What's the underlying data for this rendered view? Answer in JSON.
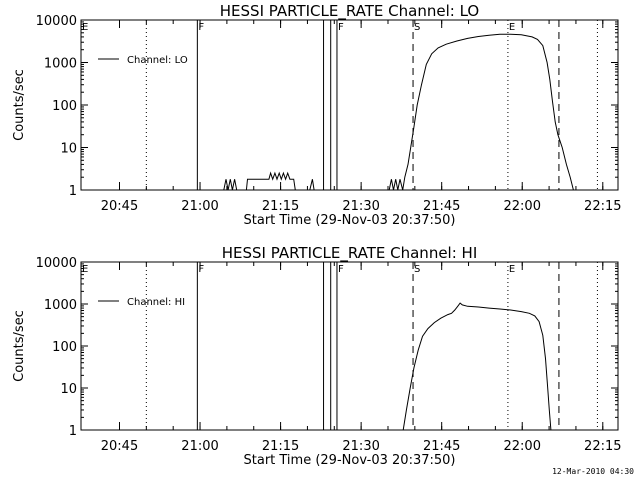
{
  "footer_timestamp": "12-Mar-2010 04:30",
  "chart_data": [
    {
      "type": "line",
      "title": "HESSI PARTICLE_RATE Channel: LO",
      "xlabel": "Start Time (29-Nov-03 20:37:50)",
      "ylabel": "Counts/sec",
      "x_unit": "minutes since 20:37:50",
      "xlim": [
        0,
        100
      ],
      "ylim": [
        1,
        10000
      ],
      "yscale": "log",
      "x_ticks": [
        "20:45",
        "21:00",
        "21:15",
        "21:30",
        "21:45",
        "22:00",
        "22:15"
      ],
      "y_ticks": [
        "1",
        "10",
        "100",
        "1000",
        "10000"
      ],
      "legend": {
        "position": "top-left",
        "entries": [
          "Channel: LO"
        ]
      },
      "markers": [
        {
          "label": "E",
          "time": "20:37:50",
          "style": "dotted"
        },
        {
          "label": "",
          "time": "20:50:00",
          "style": "dotted"
        },
        {
          "label": "F",
          "time": "20:59:30",
          "style": "solid"
        },
        {
          "label": "",
          "time": "21:23:00",
          "style": "solid"
        },
        {
          "label": "",
          "time": "21:24:20",
          "style": "solid"
        },
        {
          "label": "F",
          "time": "21:25:30",
          "style": "solid"
        },
        {
          "label": "S",
          "time": "21:39:40",
          "style": "dashed"
        },
        {
          "label": "E",
          "time": "21:57:20",
          "style": "dotted"
        },
        {
          "label": "",
          "time": "22:06:50",
          "style": "dashed"
        },
        {
          "label": "",
          "time": "22:14:00",
          "style": "dotted"
        }
      ],
      "series": [
        {
          "name": "Channel: LO",
          "segments": [
            [
              [
                26.6,
                1
              ],
              [
                27.0,
                1.8
              ],
              [
                27.4,
                1
              ],
              [
                27.8,
                1.8
              ],
              [
                28.2,
                1
              ],
              [
                28.6,
                1.8
              ],
              [
                29.0,
                1
              ]
            ],
            [
              [
                30.8,
                1
              ],
              [
                31.0,
                1.8
              ],
              [
                32.5,
                1.8
              ],
              [
                34.0,
                1.8
              ],
              [
                35.0,
                1.8
              ],
              [
                35.3,
                2.5
              ],
              [
                35.7,
                1.8
              ],
              [
                36.1,
                2.5
              ],
              [
                36.5,
                1.8
              ],
              [
                36.9,
                2.5
              ],
              [
                37.3,
                1.8
              ],
              [
                37.7,
                2.5
              ],
              [
                38.1,
                1.8
              ],
              [
                38.5,
                2.5
              ],
              [
                38.9,
                1.8
              ],
              [
                39.6,
                1.8
              ],
              [
                39.9,
                1
              ]
            ],
            [
              [
                42.6,
                1
              ],
              [
                43.1,
                1.8
              ],
              [
                43.4,
                1
              ]
            ],
            [
              [
                57.4,
                1
              ],
              [
                57.8,
                1.8
              ],
              [
                58.2,
                1
              ],
              [
                58.6,
                1.8
              ],
              [
                59.0,
                1
              ],
              [
                59.4,
                1.8
              ],
              [
                59.9,
                1
              ],
              [
                60.3,
                2
              ],
              [
                60.9,
                4
              ],
              [
                61.4,
                10
              ],
              [
                62.0,
                30
              ],
              [
                62.6,
                100
              ],
              [
                63.4,
                300
              ],
              [
                64.3,
                900
              ],
              [
                65.3,
                1600
              ],
              [
                66.5,
                2200
              ],
              [
                68.0,
                2700
              ],
              [
                70.0,
                3200
              ],
              [
                72.0,
                3700
              ],
              [
                74.0,
                4100
              ],
              [
                76.0,
                4400
              ],
              [
                78.0,
                4600
              ],
              [
                80.0,
                4600
              ],
              [
                82.0,
                4500
              ],
              [
                84.0,
                4000
              ],
              [
                85.0,
                3500
              ],
              [
                86.0,
                2500
              ],
              [
                86.8,
                1000
              ],
              [
                87.3,
                400
              ],
              [
                87.8,
                120
              ],
              [
                88.3,
                40
              ],
              [
                88.8,
                20
              ],
              [
                89.6,
                10
              ],
              [
                90.4,
                4
              ],
              [
                91.1,
                2
              ],
              [
                91.7,
                1
              ]
            ]
          ]
        }
      ]
    },
    {
      "type": "line",
      "title": "HESSI PARTICLE_RATE Channel: HI",
      "xlabel": "Start Time (29-Nov-03 20:37:50)",
      "ylabel": "Counts/sec",
      "x_unit": "minutes since 20:37:50",
      "xlim": [
        0,
        100
      ],
      "ylim": [
        1,
        10000
      ],
      "yscale": "log",
      "x_ticks": [
        "20:45",
        "21:00",
        "21:15",
        "21:30",
        "21:45",
        "22:00",
        "22:15"
      ],
      "y_ticks": [
        "1",
        "10",
        "100",
        "1000",
        "10000"
      ],
      "legend": {
        "position": "top-left",
        "entries": [
          "Channel: HI"
        ]
      },
      "markers": [
        {
          "label": "E",
          "time": "20:37:50",
          "style": "dotted"
        },
        {
          "label": "",
          "time": "20:50:00",
          "style": "dotted"
        },
        {
          "label": "F",
          "time": "20:59:30",
          "style": "solid"
        },
        {
          "label": "",
          "time": "21:23:00",
          "style": "solid"
        },
        {
          "label": "",
          "time": "21:24:20",
          "style": "solid"
        },
        {
          "label": "F",
          "time": "21:25:30",
          "style": "solid"
        },
        {
          "label": "S",
          "time": "21:39:40",
          "style": "dashed"
        },
        {
          "label": "E",
          "time": "21:57:20",
          "style": "dotted"
        },
        {
          "label": "",
          "time": "22:06:50",
          "style": "dashed"
        },
        {
          "label": "",
          "time": "22:14:00",
          "style": "dotted"
        }
      ],
      "series": [
        {
          "name": "Channel: HI",
          "segments": [
            [
              [
                60.0,
                1
              ],
              [
                60.6,
                3
              ],
              [
                61.3,
                10
              ],
              [
                62.0,
                30
              ],
              [
                62.8,
                80
              ],
              [
                63.6,
                170
              ],
              [
                64.6,
                260
              ],
              [
                65.8,
                360
              ],
              [
                67.0,
                460
              ],
              [
                68.3,
                560
              ],
              [
                69.0,
                600
              ],
              [
                69.6,
                720
              ],
              [
                70.2,
                900
              ],
              [
                70.6,
                1050
              ],
              [
                71.0,
                950
              ],
              [
                72.0,
                880
              ],
              [
                74.0,
                850
              ],
              [
                76.0,
                800
              ],
              [
                78.0,
                760
              ],
              [
                80.0,
                720
              ],
              [
                82.0,
                660
              ],
              [
                83.5,
                600
              ],
              [
                84.5,
                520
              ],
              [
                85.3,
                380
              ],
              [
                86.0,
                180
              ],
              [
                86.5,
                50
              ],
              [
                86.9,
                10
              ],
              [
                87.2,
                3
              ],
              [
                87.5,
                1
              ]
            ]
          ]
        }
      ]
    }
  ]
}
